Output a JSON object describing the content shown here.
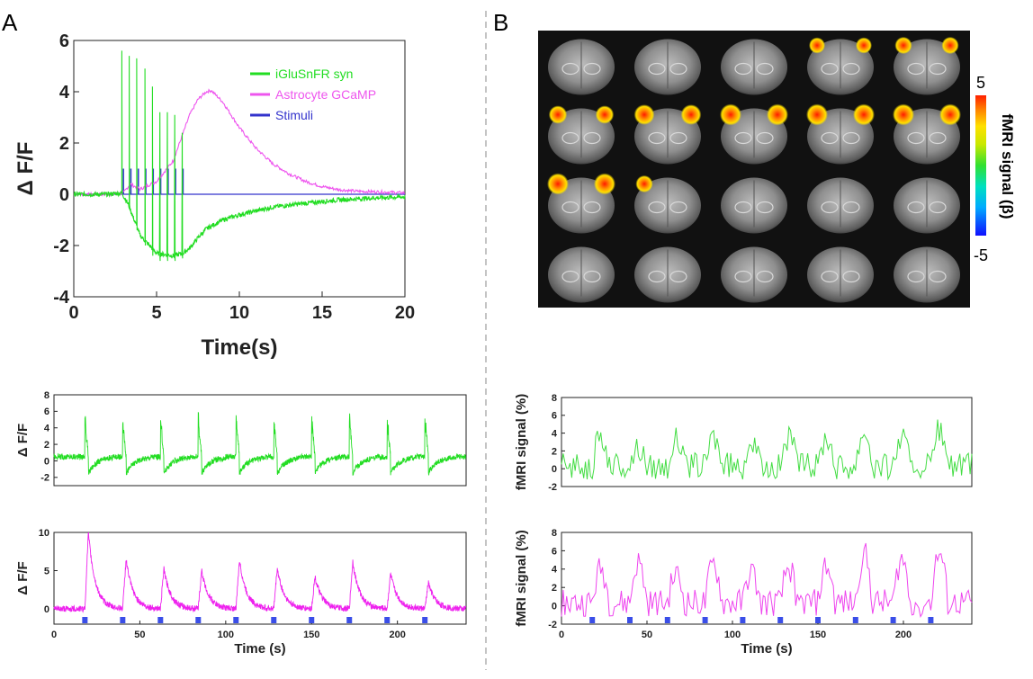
{
  "panels": {
    "a_label": "A",
    "b_label": "B"
  },
  "chart_data": [
    {
      "id": "A-main",
      "type": "line",
      "xlabel": "Time(s)",
      "ylabel": "Δ F/F",
      "xlim": [
        0,
        20
      ],
      "ylim": [
        -4,
        6
      ],
      "xticks": [
        0,
        5,
        10,
        15,
        20
      ],
      "yticks": [
        -4,
        -2,
        0,
        2,
        4,
        6
      ],
      "legend_position": "top-right",
      "legend": [
        {
          "name": "iGluSnFR syn",
          "color": "#22dd22"
        },
        {
          "name": "Astrocyte GCaMP",
          "color": "#ee55ee"
        },
        {
          "name": "Stimuli",
          "color": "#3333cc"
        }
      ],
      "series": [
        {
          "name": "iGluSnFR syn",
          "color": "#22dd22",
          "x": [
            0,
            2,
            2.9,
            3.3,
            4,
            5,
            6,
            6.6,
            7,
            7.5,
            8,
            9,
            10,
            12,
            14,
            16,
            18,
            20
          ],
          "y": [
            0,
            0,
            0.05,
            -0.4,
            -1.6,
            -2.3,
            -2.4,
            -2.3,
            -2.1,
            -1.7,
            -1.35,
            -1.0,
            -0.8,
            -0.5,
            -0.35,
            -0.22,
            -0.15,
            -0.1
          ],
          "spike_times": [
            2.9,
            3.35,
            3.8,
            4.3,
            4.75,
            5.2,
            5.65,
            6.1,
            6.55
          ],
          "spike_peaks": [
            5.6,
            5.4,
            5.3,
            4.9,
            4.2,
            3.2,
            3.2,
            3.1,
            2.4
          ],
          "spike_troughs": [
            0.2,
            -0.6,
            -1.4,
            -2.0,
            -2.4,
            -2.6,
            -2.6,
            -2.6,
            -2.5
          ]
        },
        {
          "name": "Astrocyte GCaMP",
          "color": "#ee55ee",
          "x": [
            0,
            2,
            3,
            3.4,
            4,
            5,
            6,
            6.5,
            7,
            7.5,
            8,
            8.3,
            9,
            10,
            11,
            12,
            13,
            14,
            15,
            16,
            17,
            18,
            19,
            20
          ],
          "y": [
            0,
            0,
            0.05,
            0.4,
            0.2,
            0.5,
            1.3,
            2.2,
            3.1,
            3.7,
            4.0,
            4.05,
            3.6,
            2.6,
            1.8,
            1.2,
            0.8,
            0.5,
            0.3,
            0.18,
            0.12,
            0.1,
            0.08,
            0.05
          ]
        },
        {
          "name": "Stimuli",
          "color": "#3333cc",
          "baseline": 0,
          "pulse_times": [
            3.0,
            3.45,
            3.9,
            4.35,
            4.8,
            5.25,
            5.7,
            6.15,
            6.6
          ],
          "pulse_height": 1.0
        }
      ]
    },
    {
      "id": "A-iglusnfr-trace",
      "type": "line",
      "ylabel": "Δ F/F",
      "xlim": [
        0,
        240
      ],
      "ylim": [
        -3,
        8
      ],
      "yticks": [
        -2,
        0,
        2,
        4,
        6,
        8
      ],
      "color": "#22dd22",
      "stim_onsets": [
        18,
        40,
        62,
        84,
        106,
        128,
        150,
        172,
        194,
        216
      ],
      "peak_heights": [
        6.0,
        5.2,
        5.4,
        5.8,
        5.9,
        5.5,
        5.4,
        5.6,
        5.9,
        6.2
      ],
      "baseline": 0.5,
      "undershoot": -2.0
    },
    {
      "id": "A-gcamp-trace",
      "type": "line",
      "xlabel": "Time (s)",
      "ylabel": "Δ F/F",
      "xlim": [
        0,
        240
      ],
      "ylim": [
        -2,
        10
      ],
      "xticks": [
        0,
        50,
        100,
        150,
        200
      ],
      "yticks": [
        0,
        5,
        10
      ],
      "color": "#ee22ee",
      "stim_color": "#3a4ee8",
      "stim_onsets": [
        18,
        40,
        62,
        84,
        106,
        128,
        150,
        172,
        194,
        216
      ],
      "peak_heights": [
        10.0,
        6.5,
        5.2,
        5.0,
        6.4,
        5.3,
        4.2,
        6.2,
        4.6,
        3.4
      ],
      "baseline": 0
    },
    {
      "id": "B-fmri-green",
      "type": "line",
      "ylabel": "fMRI signal (%)",
      "xlim": [
        0,
        240
      ],
      "ylim": [
        -2,
        8
      ],
      "yticks": [
        -2,
        0,
        2,
        4,
        6,
        8
      ],
      "color": "#44dd44",
      "stim_onsets": [
        18,
        40,
        62,
        84,
        106,
        128,
        150,
        172,
        194,
        216
      ],
      "peak_heights": [
        3.2,
        2.0,
        3.0,
        3.3,
        2.6,
        3.2,
        3.3,
        4.0,
        3.2,
        4.0
      ],
      "noise_amp": 1.5
    },
    {
      "id": "B-fmri-magenta",
      "type": "line",
      "xlabel": "Time (s)",
      "ylabel": "fMRI signal (%)",
      "xlim": [
        0,
        240
      ],
      "ylim": [
        -2,
        8
      ],
      "xticks": [
        0,
        50,
        100,
        150,
        200
      ],
      "yticks": [
        -2,
        0,
        2,
        4,
        6,
        8
      ],
      "color": "#ee44ee",
      "stim_color": "#3a4ee8",
      "stim_onsets": [
        18,
        40,
        62,
        84,
        106,
        128,
        150,
        172,
        194,
        216
      ],
      "peak_heights": [
        3.7,
        4.4,
        3.1,
        4.2,
        3.4,
        3.8,
        4.0,
        5.3,
        4.8,
        5.4
      ],
      "noise_amp": 1.5
    }
  ],
  "mri_montage": {
    "rows": 4,
    "cols": 5,
    "activation_slices": [
      3,
      4,
      5,
      6,
      7,
      8,
      9,
      10,
      11
    ],
    "activation_strength": [
      0.5,
      0.6,
      0.7,
      0.9,
      1.0,
      1.0,
      1.0,
      1.0,
      0.6
    ]
  },
  "colorbar": {
    "label": "fMRI signal (β)",
    "max_label": "5",
    "min_label": "-5",
    "colors": [
      "#1010ff",
      "#00aaff",
      "#00e0c0",
      "#30e030",
      "#c8e800",
      "#ffe000",
      "#ff8000",
      "#ff2000"
    ]
  }
}
